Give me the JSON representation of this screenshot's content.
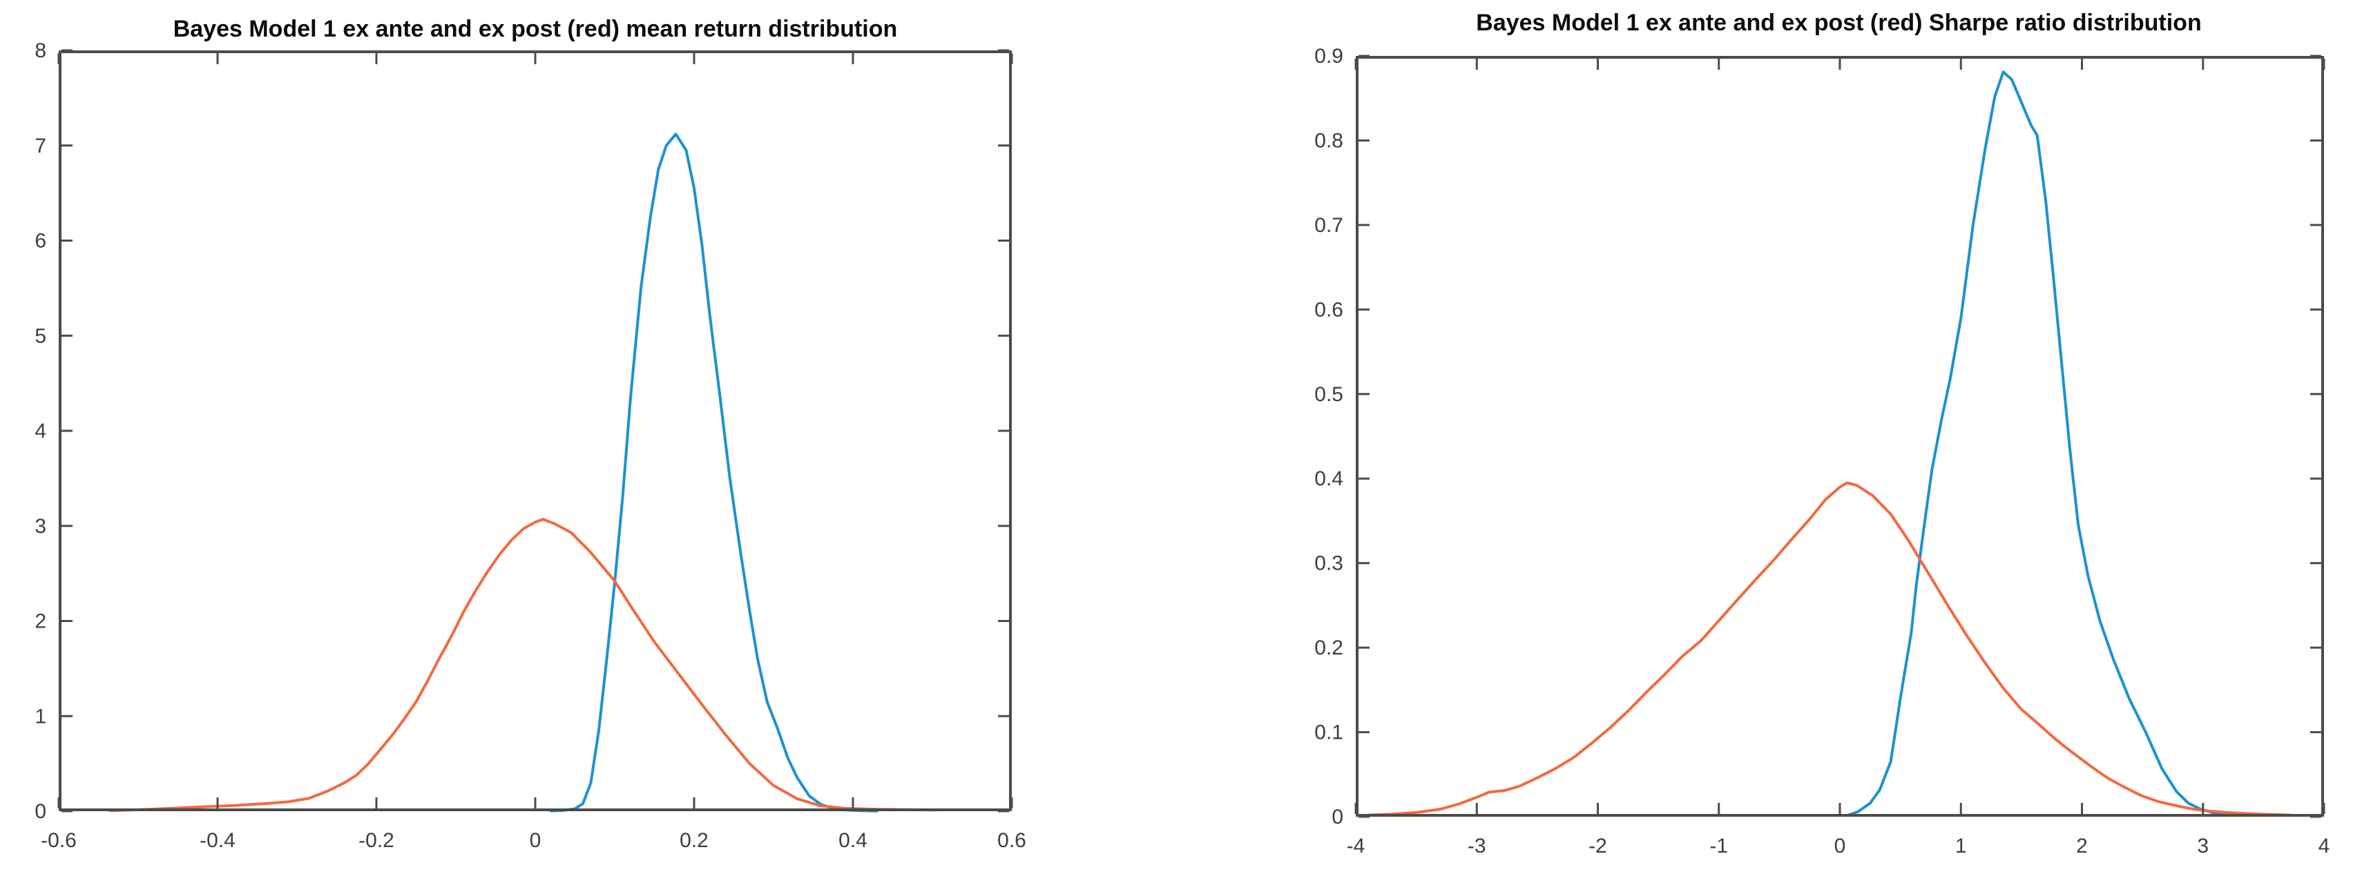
{
  "figure": {
    "background": "#ffffff",
    "axis_color": "#4b4b4b",
    "tick_label_color": "#3d3d3d",
    "title_color": "#0c0c0c"
  },
  "chart_data": [
    {
      "type": "line",
      "title": "Bayes Model 1 ex ante and ex post (red) mean return distribution",
      "xlabel": "",
      "ylabel": "",
      "xlim": [
        -0.6,
        0.6
      ],
      "ylim": [
        0,
        8
      ],
      "grid": false,
      "legend": null,
      "box": true,
      "tick_direction": "in",
      "xticks": {
        "values": [
          -0.6,
          -0.4,
          -0.2,
          0,
          0.2,
          0.4,
          0.6
        ],
        "labels": [
          "-0.6",
          "-0.4",
          "-0.2",
          "0",
          "0.2",
          "0.4",
          "0.6"
        ]
      },
      "yticks": {
        "values": [
          0,
          1,
          2,
          3,
          4,
          5,
          6,
          7,
          8
        ],
        "labels": [
          "0",
          "1",
          "2",
          "3",
          "4",
          "5",
          "6",
          "7",
          "8"
        ]
      },
      "series": [
        {
          "name": "ex ante",
          "color": "#1b92d1",
          "points": [
            [
              0.02,
              0.002
            ],
            [
              0.035,
              0.008
            ],
            [
              0.05,
              0.025
            ],
            [
              0.06,
              0.08
            ],
            [
              0.07,
              0.3
            ],
            [
              0.08,
              0.85
            ],
            [
              0.09,
              1.6
            ],
            [
              0.1,
              2.4
            ],
            [
              0.11,
              3.3
            ],
            [
              0.12,
              4.35
            ],
            [
              0.133,
              5.5
            ],
            [
              0.145,
              6.25
            ],
            [
              0.155,
              6.75
            ],
            [
              0.165,
              7.0
            ],
            [
              0.177,
              7.12
            ],
            [
              0.19,
              6.95
            ],
            [
              0.2,
              6.55
            ],
            [
              0.21,
              5.95
            ],
            [
              0.22,
              5.2
            ],
            [
              0.232,
              4.4
            ],
            [
              0.245,
              3.5
            ],
            [
              0.258,
              2.75
            ],
            [
              0.27,
              2.1
            ],
            [
              0.28,
              1.6
            ],
            [
              0.292,
              1.15
            ],
            [
              0.305,
              0.87
            ],
            [
              0.318,
              0.56
            ],
            [
              0.33,
              0.35
            ],
            [
              0.345,
              0.16
            ],
            [
              0.36,
              0.07
            ],
            [
              0.375,
              0.03
            ],
            [
              0.39,
              0.012
            ],
            [
              0.41,
              0.005
            ],
            [
              0.43,
              0.002
            ]
          ]
        },
        {
          "name": "ex post",
          "color": "#f2halfnone",
          "points": []
        }
      ]
    }
  ]
}
